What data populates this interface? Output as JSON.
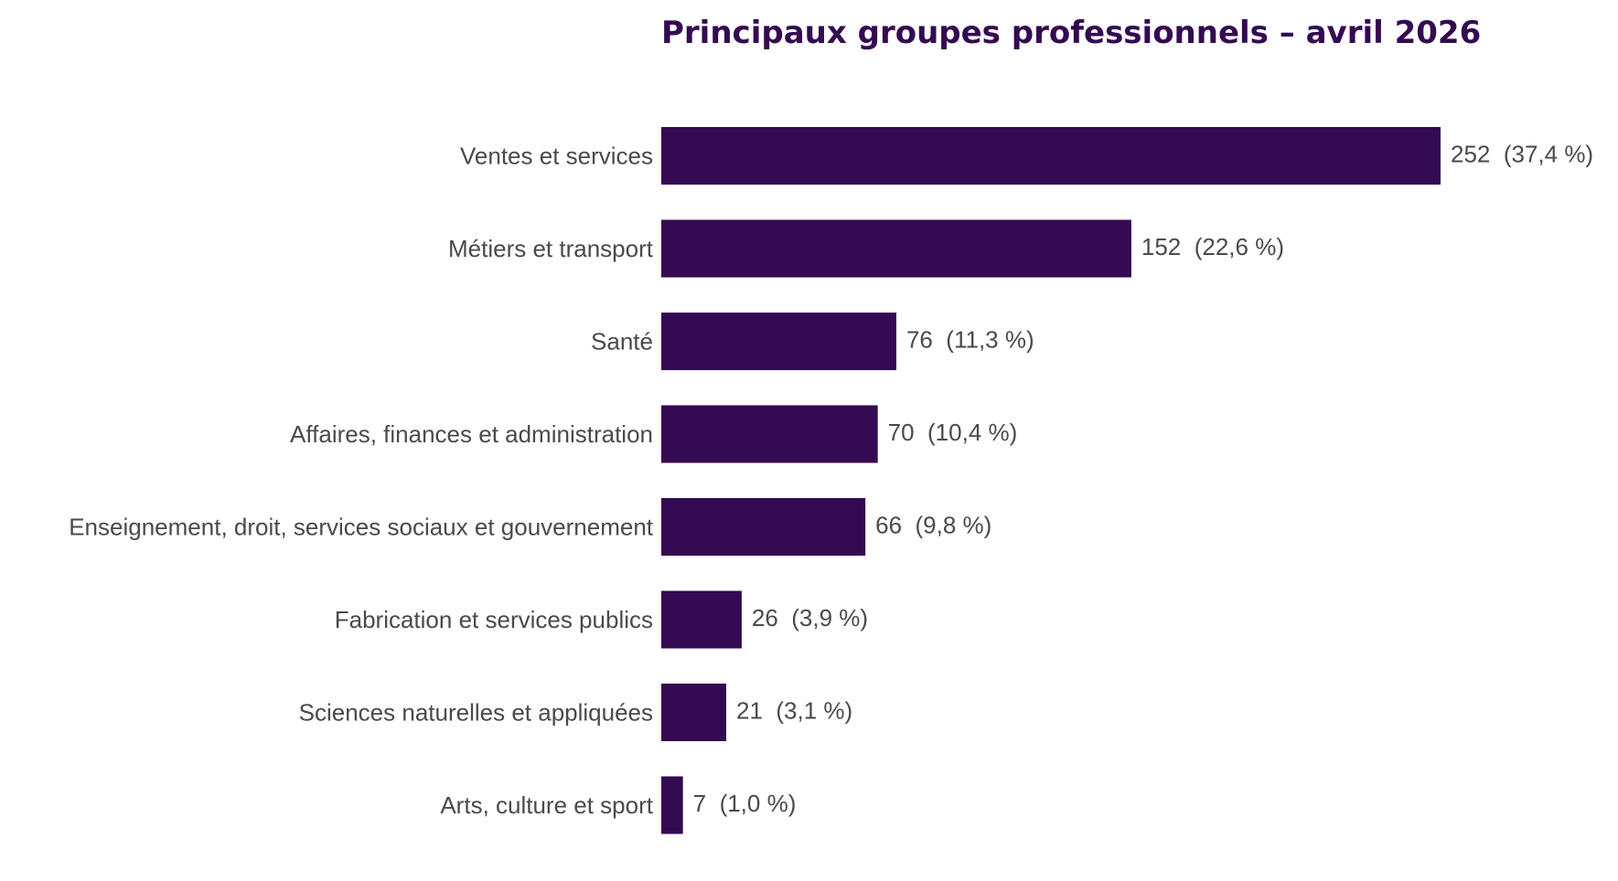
{
  "chart_data": {
    "type": "bar",
    "orientation": "horizontal",
    "title": "Principaux groupes professionnels – avril 2026",
    "categories": [
      "Ventes et services",
      "Métiers et transport",
      "Santé",
      "Affaires, finances et administration",
      "Enseignement, droit, services sociaux et gouvernement",
      "Fabrication et services publics",
      "Sciences naturelles et appliquées",
      "Arts, culture et sport"
    ],
    "values": [
      252,
      152,
      76,
      70,
      66,
      26,
      21,
      7
    ],
    "value_labels": [
      "252  (37,4 %)",
      "152  (22,6 %)",
      "76  (11,3 %)",
      "70  (10,4 %)",
      "66  (9,8 %)",
      "26  (3,9 %)",
      "21  (3,1 %)",
      "7  (1,0 %)"
    ],
    "xlim": [
      0,
      252
    ],
    "grid": false,
    "legend": "none",
    "colors": {
      "bar": "#340a52",
      "title": "#340a52",
      "text": "#4a4a4a"
    }
  }
}
